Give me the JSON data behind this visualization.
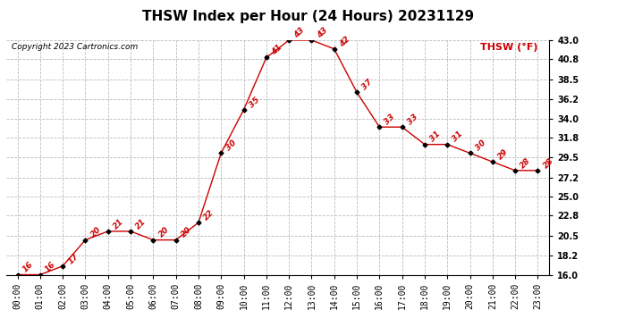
{
  "title": "THSW Index per Hour (24 Hours) 20231129",
  "copyright": "Copyright 2023 Cartronics.com",
  "legend_label": "THSW (°F)",
  "hours": [
    "00:00",
    "01:00",
    "02:00",
    "03:00",
    "04:00",
    "05:00",
    "06:00",
    "07:00",
    "08:00",
    "09:00",
    "10:00",
    "11:00",
    "12:00",
    "13:00",
    "14:00",
    "15:00",
    "16:00",
    "17:00",
    "18:00",
    "19:00",
    "20:00",
    "21:00",
    "22:00",
    "23:00"
  ],
  "values": [
    16,
    16,
    17,
    20,
    21,
    21,
    20,
    20,
    22,
    30,
    35,
    41,
    43,
    43,
    42,
    37,
    33,
    33,
    31,
    31,
    30,
    29,
    28,
    28
  ],
  "ylim": [
    16.0,
    43.0
  ],
  "yticks": [
    16.0,
    18.2,
    20.5,
    22.8,
    25.0,
    27.2,
    29.5,
    31.8,
    34.0,
    36.2,
    38.5,
    40.8,
    43.0
  ],
  "line_color": "#cc0000",
  "marker_color": "#000000",
  "grid_color": "#bbbbbb",
  "bg_color": "#ffffff",
  "title_fontsize": 11,
  "label_fontsize": 7,
  "annotation_fontsize": 6.5,
  "copyright_fontsize": 6.5
}
